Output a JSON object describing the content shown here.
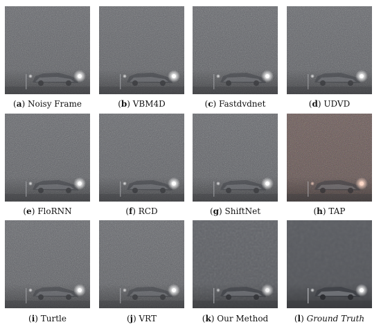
{
  "figure": {
    "panels": [
      {
        "letter": "a",
        "name": "Noisy Frame",
        "italic": false,
        "variant": "noisy"
      },
      {
        "letter": "b",
        "name": "VBM4D",
        "italic": false,
        "variant": "noisy"
      },
      {
        "letter": "c",
        "name": "Fastdvdnet",
        "italic": false,
        "variant": "noisy"
      },
      {
        "letter": "d",
        "name": "UDVD",
        "italic": false,
        "variant": "noisy"
      },
      {
        "letter": "e",
        "name": "FloRNN",
        "italic": false,
        "variant": "noisy"
      },
      {
        "letter": "f",
        "name": "RCD",
        "italic": false,
        "variant": "noisy"
      },
      {
        "letter": "g",
        "name": "ShiftNet",
        "italic": false,
        "variant": "noisy"
      },
      {
        "letter": "h",
        "name": "TAP",
        "italic": false,
        "variant": "color"
      },
      {
        "letter": "i",
        "name": "Turtle",
        "italic": false,
        "variant": "noisy"
      },
      {
        "letter": "j",
        "name": "VRT",
        "italic": false,
        "variant": "noisy"
      },
      {
        "letter": "k",
        "name": "Our Method",
        "italic": false,
        "variant": "smooth"
      },
      {
        "letter": "l",
        "name": "Ground Truth",
        "italic": true,
        "variant": "clean"
      }
    ]
  }
}
